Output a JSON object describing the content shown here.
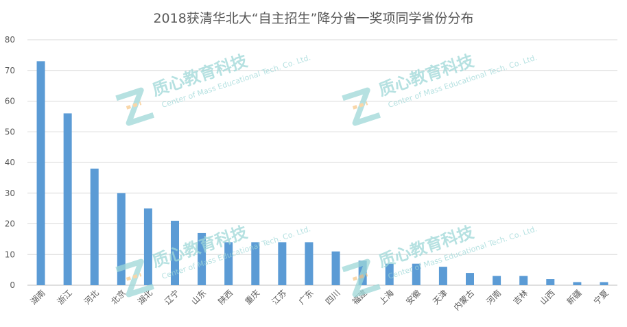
{
  "chart_data": {
    "type": "bar",
    "title": "2018获清华北大“自主招生”降分省一奖项同学省份分布",
    "xlabel": "",
    "ylabel": "",
    "ylim": [
      0,
      80
    ],
    "yticks": [
      0,
      10,
      20,
      30,
      40,
      50,
      60,
      70,
      80
    ],
    "grid": true,
    "legend": "none",
    "categories": [
      "湖南",
      "浙江",
      "河北",
      "北京",
      "湖北",
      "辽宁",
      "山东",
      "陕西",
      "重庆",
      "江苏",
      "广东",
      "四川",
      "福建",
      "上海",
      "安徽",
      "天津",
      "内蒙古",
      "河南",
      "吉林",
      "山西",
      "新疆",
      "宁夏"
    ],
    "values": [
      73,
      56,
      38,
      30,
      25,
      21,
      17,
      14,
      14,
      14,
      14,
      11,
      8,
      7,
      7,
      6,
      4,
      3,
      3,
      2,
      1,
      1
    ],
    "bar_color": "#5B9BD5"
  },
  "watermark": {
    "name_cn": "质心教育科技",
    "name_en": "Center of Mass Educational Tech. Co. Ltd.",
    "color": "#9ED8D8",
    "accent_color": "#F7C98B"
  }
}
